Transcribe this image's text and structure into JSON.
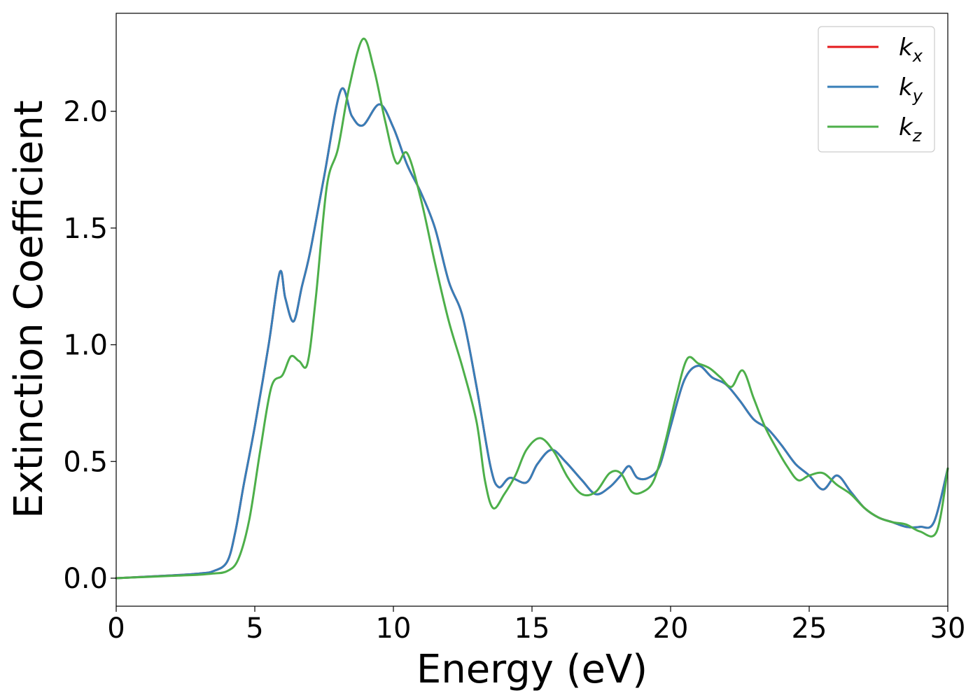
{
  "chart_data": {
    "type": "line",
    "title": "",
    "xlabel": "Energy (eV)",
    "ylabel": "Extinction Coefficient",
    "xlim": [
      0,
      30
    ],
    "ylim": [
      -0.12,
      2.42
    ],
    "xticks": [
      0,
      5,
      10,
      15,
      20,
      25,
      30
    ],
    "xtick_labels": [
      "0",
      "5",
      "10",
      "15",
      "20",
      "25",
      "30"
    ],
    "yticks": [
      0.0,
      0.5,
      1.0,
      1.5,
      2.0
    ],
    "ytick_labels": [
      "0.0",
      "0.5",
      "1.0",
      "1.5",
      "2.0"
    ],
    "grid": false,
    "legend_position": "top-right",
    "series": [
      {
        "name": "k",
        "name_sub": "x",
        "color": "#e41a1c",
        "x": [
          0,
          1,
          2,
          3,
          3.5,
          4,
          4.3,
          4.6,
          5,
          5.5,
          5.9,
          6.1,
          6.4,
          6.7,
          7,
          7.5,
          8.1,
          8.5,
          8.9,
          9.5,
          10,
          10.5,
          11,
          11.5,
          12,
          12.5,
          13,
          13.5,
          13.8,
          14.2,
          14.8,
          15.2,
          15.7,
          16.2,
          16.8,
          17.3,
          17.8,
          18.2,
          18.5,
          18.8,
          19.2,
          19.6,
          20,
          20.5,
          21,
          21.5,
          22,
          22.5,
          23,
          23.5,
          24,
          24.5,
          25,
          25.5,
          26,
          26.5,
          27,
          27.5,
          28,
          28.5,
          29,
          29.5,
          30
        ],
        "y": [
          0,
          0.006,
          0.012,
          0.02,
          0.03,
          0.07,
          0.2,
          0.4,
          0.65,
          1.0,
          1.31,
          1.2,
          1.1,
          1.25,
          1.4,
          1.72,
          2.09,
          1.98,
          1.94,
          2.03,
          1.93,
          1.77,
          1.65,
          1.5,
          1.27,
          1.12,
          0.82,
          0.48,
          0.39,
          0.43,
          0.41,
          0.49,
          0.55,
          0.5,
          0.42,
          0.36,
          0.39,
          0.44,
          0.48,
          0.43,
          0.43,
          0.48,
          0.65,
          0.85,
          0.91,
          0.86,
          0.83,
          0.76,
          0.68,
          0.64,
          0.57,
          0.49,
          0.44,
          0.38,
          0.44,
          0.37,
          0.3,
          0.26,
          0.24,
          0.22,
          0.22,
          0.24,
          0.47
        ]
      },
      {
        "name": "k",
        "name_sub": "y",
        "color": "#377eb8",
        "x": [
          0,
          1,
          2,
          3,
          3.5,
          4,
          4.3,
          4.6,
          5,
          5.5,
          5.9,
          6.1,
          6.4,
          6.7,
          7,
          7.5,
          8.1,
          8.5,
          8.9,
          9.5,
          10,
          10.5,
          11,
          11.5,
          12,
          12.5,
          13,
          13.5,
          13.8,
          14.2,
          14.8,
          15.2,
          15.7,
          16.2,
          16.8,
          17.3,
          17.8,
          18.2,
          18.5,
          18.8,
          19.2,
          19.6,
          20,
          20.5,
          21,
          21.5,
          22,
          22.5,
          23,
          23.5,
          24,
          24.5,
          25,
          25.5,
          26,
          26.5,
          27,
          27.5,
          28,
          28.5,
          29,
          29.5,
          30
        ],
        "y": [
          0,
          0.006,
          0.012,
          0.02,
          0.03,
          0.07,
          0.2,
          0.4,
          0.65,
          1.0,
          1.31,
          1.2,
          1.1,
          1.25,
          1.4,
          1.72,
          2.09,
          1.98,
          1.94,
          2.03,
          1.93,
          1.77,
          1.65,
          1.5,
          1.27,
          1.12,
          0.82,
          0.48,
          0.39,
          0.43,
          0.41,
          0.49,
          0.55,
          0.5,
          0.42,
          0.36,
          0.39,
          0.44,
          0.48,
          0.43,
          0.43,
          0.48,
          0.65,
          0.85,
          0.91,
          0.86,
          0.83,
          0.76,
          0.68,
          0.64,
          0.57,
          0.49,
          0.44,
          0.38,
          0.44,
          0.37,
          0.3,
          0.26,
          0.24,
          0.22,
          0.22,
          0.24,
          0.47
        ]
      },
      {
        "name": "k",
        "name_sub": "z",
        "color": "#4daf4a",
        "x": [
          0,
          1,
          2,
          3,
          3.5,
          4,
          4.4,
          4.8,
          5.2,
          5.6,
          6,
          6.3,
          6.6,
          6.9,
          7.2,
          7.6,
          8,
          8.4,
          8.9,
          9.3,
          9.7,
          10.1,
          10.5,
          11,
          11.5,
          12,
          12.5,
          13,
          13.3,
          13.6,
          14,
          14.4,
          14.8,
          15.3,
          15.8,
          16.3,
          16.8,
          17.3,
          17.8,
          18.2,
          18.6,
          19,
          19.4,
          19.8,
          20.2,
          20.6,
          21,
          21.4,
          21.8,
          22.2,
          22.6,
          23,
          23.4,
          23.8,
          24.2,
          24.6,
          25,
          25.5,
          26,
          26.5,
          27,
          27.5,
          28,
          28.5,
          29,
          29.6,
          30
        ],
        "y": [
          0,
          0.005,
          0.01,
          0.015,
          0.02,
          0.03,
          0.08,
          0.25,
          0.55,
          0.82,
          0.87,
          0.95,
          0.93,
          0.92,
          1.2,
          1.68,
          1.84,
          2.1,
          2.31,
          2.18,
          1.96,
          1.78,
          1.82,
          1.62,
          1.35,
          1.1,
          0.9,
          0.67,
          0.42,
          0.3,
          0.36,
          0.44,
          0.55,
          0.6,
          0.54,
          0.43,
          0.36,
          0.37,
          0.45,
          0.45,
          0.37,
          0.37,
          0.42,
          0.58,
          0.78,
          0.94,
          0.92,
          0.9,
          0.86,
          0.82,
          0.89,
          0.77,
          0.65,
          0.56,
          0.48,
          0.42,
          0.44,
          0.45,
          0.4,
          0.36,
          0.3,
          0.26,
          0.24,
          0.23,
          0.2,
          0.2,
          0.47
        ]
      }
    ]
  }
}
